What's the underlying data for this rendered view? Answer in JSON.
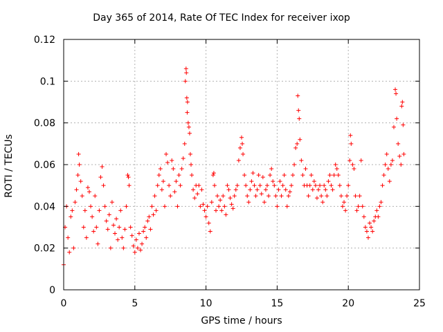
{
  "chart_data": {
    "type": "scatter",
    "title": "Day 365 of 2014, Rate Of TEC Index for receiver ixop",
    "xlabel": "GPS time / hours",
    "ylabel": "ROTI / TECUs",
    "xlim": [
      0,
      25
    ],
    "ylim": [
      0,
      0.12
    ],
    "grid": true,
    "marker": "+",
    "color": "#ff0000",
    "x_ticks": [
      {
        "value": 0,
        "label": "0"
      },
      {
        "value": 5,
        "label": "5"
      },
      {
        "value": 10,
        "label": "10"
      },
      {
        "value": 15,
        "label": "15"
      },
      {
        "value": 20,
        "label": "20"
      },
      {
        "value": 25,
        "label": "25"
      }
    ],
    "y_ticks": [
      {
        "value": 0,
        "label": "0"
      },
      {
        "value": 0.02,
        "label": "0.02"
      },
      {
        "value": 0.04,
        "label": "0.04"
      },
      {
        "value": 0.06,
        "label": "0.06"
      },
      {
        "value": 0.08,
        "label": "0.08"
      },
      {
        "value": 0.1,
        "label": "0.1"
      },
      {
        "value": 0.12,
        "label": "0.12"
      }
    ],
    "series": [
      {
        "name": "ROTI",
        "points": [
          [
            0.0,
            0.012
          ],
          [
            0.1,
            0.03
          ],
          [
            0.2,
            0.04
          ],
          [
            0.3,
            0.025
          ],
          [
            0.4,
            0.018
          ],
          [
            0.5,
            0.035
          ],
          [
            0.6,
            0.038
          ],
          [
            0.7,
            0.02
          ],
          [
            0.8,
            0.042
          ],
          [
            0.9,
            0.048
          ],
          [
            1.0,
            0.055
          ],
          [
            1.05,
            0.065
          ],
          [
            1.1,
            0.06
          ],
          [
            1.2,
            0.052
          ],
          [
            1.3,
            0.045
          ],
          [
            1.4,
            0.03
          ],
          [
            1.5,
            0.038
          ],
          [
            1.6,
            0.025
          ],
          [
            1.7,
            0.049
          ],
          [
            1.8,
            0.047
          ],
          [
            1.9,
            0.04
          ],
          [
            2.0,
            0.035
          ],
          [
            2.1,
            0.028
          ],
          [
            2.2,
            0.045
          ],
          [
            2.3,
            0.03
          ],
          [
            2.4,
            0.022
          ],
          [
            2.5,
            0.038
          ],
          [
            2.6,
            0.054
          ],
          [
            2.7,
            0.059
          ],
          [
            2.8,
            0.05
          ],
          [
            2.9,
            0.04
          ],
          [
            3.0,
            0.033
          ],
          [
            3.1,
            0.029
          ],
          [
            3.2,
            0.036
          ],
          [
            3.3,
            0.02
          ],
          [
            3.4,
            0.042
          ],
          [
            3.5,
            0.031
          ],
          [
            3.6,
            0.027
          ],
          [
            3.7,
            0.034
          ],
          [
            3.8,
            0.024
          ],
          [
            3.9,
            0.03
          ],
          [
            4.0,
            0.038
          ],
          [
            4.1,
            0.025
          ],
          [
            4.2,
            0.02
          ],
          [
            4.3,
            0.029
          ],
          [
            4.4,
            0.04
          ],
          [
            4.5,
            0.055
          ],
          [
            4.55,
            0.054
          ],
          [
            4.6,
            0.05
          ],
          [
            4.7,
            0.03
          ],
          [
            4.8,
            0.026
          ],
          [
            4.9,
            0.021
          ],
          [
            5.0,
            0.018
          ],
          [
            5.1,
            0.024
          ],
          [
            5.2,
            0.02
          ],
          [
            5.3,
            0.027
          ],
          [
            5.4,
            0.019
          ],
          [
            5.5,
            0.022
          ],
          [
            5.6,
            0.028
          ],
          [
            5.7,
            0.03
          ],
          [
            5.8,
            0.025
          ],
          [
            5.9,
            0.033
          ],
          [
            6.0,
            0.035
          ],
          [
            6.1,
            0.029
          ],
          [
            6.2,
            0.04
          ],
          [
            6.3,
            0.036
          ],
          [
            6.4,
            0.045
          ],
          [
            6.5,
            0.038
          ],
          [
            6.6,
            0.05
          ],
          [
            6.7,
            0.055
          ],
          [
            6.8,
            0.058
          ],
          [
            6.9,
            0.048
          ],
          [
            7.0,
            0.052
          ],
          [
            7.1,
            0.04
          ],
          [
            7.2,
            0.065
          ],
          [
            7.3,
            0.061
          ],
          [
            7.4,
            0.05
          ],
          [
            7.5,
            0.045
          ],
          [
            7.6,
            0.062
          ],
          [
            7.7,
            0.058
          ],
          [
            7.8,
            0.047
          ],
          [
            7.9,
            0.052
          ],
          [
            8.0,
            0.04
          ],
          [
            8.1,
            0.055
          ],
          [
            8.2,
            0.05
          ],
          [
            8.3,
            0.058
          ],
          [
            8.4,
            0.063
          ],
          [
            8.5,
            0.07
          ],
          [
            8.55,
            0.1
          ],
          [
            8.6,
            0.106
          ],
          [
            8.62,
            0.104
          ],
          [
            8.65,
            0.092
          ],
          [
            8.68,
            0.085
          ],
          [
            8.7,
            0.09
          ],
          [
            8.75,
            0.08
          ],
          [
            8.8,
            0.078
          ],
          [
            8.85,
            0.075
          ],
          [
            8.9,
            0.065
          ],
          [
            8.95,
            0.06
          ],
          [
            9.0,
            0.055
          ],
          [
            9.1,
            0.048
          ],
          [
            9.2,
            0.044
          ],
          [
            9.3,
            0.05
          ],
          [
            9.4,
            0.046
          ],
          [
            9.5,
            0.05
          ],
          [
            9.6,
            0.04
          ],
          [
            9.7,
            0.048
          ],
          [
            9.8,
            0.041
          ],
          [
            9.9,
            0.038
          ],
          [
            10.0,
            0.035
          ],
          [
            10.1,
            0.04
          ],
          [
            10.2,
            0.032
          ],
          [
            10.3,
            0.028
          ],
          [
            10.4,
            0.042
          ],
          [
            10.5,
            0.055
          ],
          [
            10.55,
            0.056
          ],
          [
            10.6,
            0.05
          ],
          [
            10.7,
            0.038
          ],
          [
            10.8,
            0.045
          ],
          [
            10.9,
            0.04
          ],
          [
            11.0,
            0.043
          ],
          [
            11.1,
            0.038
          ],
          [
            11.2,
            0.045
          ],
          [
            11.3,
            0.04
          ],
          [
            11.4,
            0.036
          ],
          [
            11.5,
            0.05
          ],
          [
            11.6,
            0.048
          ],
          [
            11.7,
            0.044
          ],
          [
            11.8,
            0.041
          ],
          [
            11.9,
            0.039
          ],
          [
            12.0,
            0.045
          ],
          [
            12.1,
            0.048
          ],
          [
            12.2,
            0.05
          ],
          [
            12.3,
            0.062
          ],
          [
            12.4,
            0.068
          ],
          [
            12.5,
            0.073
          ],
          [
            12.55,
            0.07
          ],
          [
            12.6,
            0.065
          ],
          [
            12.7,
            0.055
          ],
          [
            12.8,
            0.05
          ],
          [
            12.9,
            0.045
          ],
          [
            13.0,
            0.042
          ],
          [
            13.1,
            0.048
          ],
          [
            13.2,
            0.052
          ],
          [
            13.3,
            0.056
          ],
          [
            13.4,
            0.05
          ],
          [
            13.5,
            0.045
          ],
          [
            13.6,
            0.048
          ],
          [
            13.7,
            0.055
          ],
          [
            13.8,
            0.05
          ],
          [
            13.9,
            0.046
          ],
          [
            14.0,
            0.054
          ],
          [
            14.1,
            0.042
          ],
          [
            14.2,
            0.048
          ],
          [
            14.3,
            0.05
          ],
          [
            14.4,
            0.045
          ],
          [
            14.5,
            0.055
          ],
          [
            14.6,
            0.058
          ],
          [
            14.7,
            0.052
          ],
          [
            14.8,
            0.05
          ],
          [
            14.9,
            0.045
          ],
          [
            15.0,
            0.04
          ],
          [
            15.1,
            0.048
          ],
          [
            15.2,
            0.052
          ],
          [
            15.3,
            0.045
          ],
          [
            15.4,
            0.05
          ],
          [
            15.5,
            0.055
          ],
          [
            15.6,
            0.048
          ],
          [
            15.7,
            0.04
          ],
          [
            15.8,
            0.045
          ],
          [
            15.9,
            0.047
          ],
          [
            16.0,
            0.05
          ],
          [
            16.1,
            0.055
          ],
          [
            16.2,
            0.06
          ],
          [
            16.3,
            0.068
          ],
          [
            16.4,
            0.07
          ],
          [
            16.45,
            0.093
          ],
          [
            16.5,
            0.086
          ],
          [
            16.55,
            0.082
          ],
          [
            16.6,
            0.072
          ],
          [
            16.7,
            0.062
          ],
          [
            16.8,
            0.055
          ],
          [
            16.9,
            0.05
          ],
          [
            17.0,
            0.058
          ],
          [
            17.1,
            0.05
          ],
          [
            17.2,
            0.045
          ],
          [
            17.3,
            0.05
          ],
          [
            17.4,
            0.055
          ],
          [
            17.5,
            0.048
          ],
          [
            17.6,
            0.052
          ],
          [
            17.7,
            0.05
          ],
          [
            17.8,
            0.044
          ],
          [
            17.9,
            0.048
          ],
          [
            18.0,
            0.05
          ],
          [
            18.1,
            0.045
          ],
          [
            18.2,
            0.042
          ],
          [
            18.3,
            0.05
          ],
          [
            18.4,
            0.048
          ],
          [
            18.5,
            0.045
          ],
          [
            18.6,
            0.052
          ],
          [
            18.7,
            0.055
          ],
          [
            18.8,
            0.05
          ],
          [
            18.9,
            0.048
          ],
          [
            19.0,
            0.055
          ],
          [
            19.1,
            0.06
          ],
          [
            19.2,
            0.058
          ],
          [
            19.3,
            0.055
          ],
          [
            19.4,
            0.05
          ],
          [
            19.5,
            0.045
          ],
          [
            19.6,
            0.04
          ],
          [
            19.7,
            0.042
          ],
          [
            19.8,
            0.038
          ],
          [
            19.9,
            0.045
          ],
          [
            20.0,
            0.05
          ],
          [
            20.1,
            0.062
          ],
          [
            20.15,
            0.074
          ],
          [
            20.2,
            0.07
          ],
          [
            20.3,
            0.06
          ],
          [
            20.4,
            0.058
          ],
          [
            20.5,
            0.045
          ],
          [
            20.6,
            0.038
          ],
          [
            20.7,
            0.04
          ],
          [
            20.8,
            0.045
          ],
          [
            20.9,
            0.062
          ],
          [
            21.0,
            0.04
          ],
          [
            21.1,
            0.035
          ],
          [
            21.2,
            0.03
          ],
          [
            21.3,
            0.028
          ],
          [
            21.4,
            0.025
          ],
          [
            21.5,
            0.032
          ],
          [
            21.6,
            0.03
          ],
          [
            21.7,
            0.028
          ],
          [
            21.8,
            0.033
          ],
          [
            21.9,
            0.035
          ],
          [
            22.0,
            0.038
          ],
          [
            22.1,
            0.035
          ],
          [
            22.2,
            0.04
          ],
          [
            22.3,
            0.042
          ],
          [
            22.4,
            0.05
          ],
          [
            22.5,
            0.055
          ],
          [
            22.6,
            0.06
          ],
          [
            22.7,
            0.065
          ],
          [
            22.8,
            0.058
          ],
          [
            22.9,
            0.052
          ],
          [
            23.0,
            0.06
          ],
          [
            23.1,
            0.062
          ],
          [
            23.2,
            0.078
          ],
          [
            23.3,
            0.096
          ],
          [
            23.35,
            0.094
          ],
          [
            23.4,
            0.082
          ],
          [
            23.5,
            0.07
          ],
          [
            23.6,
            0.064
          ],
          [
            23.7,
            0.06
          ],
          [
            23.75,
            0.088
          ],
          [
            23.8,
            0.09
          ],
          [
            23.85,
            0.079
          ],
          [
            23.9,
            0.065
          ]
        ]
      }
    ]
  }
}
